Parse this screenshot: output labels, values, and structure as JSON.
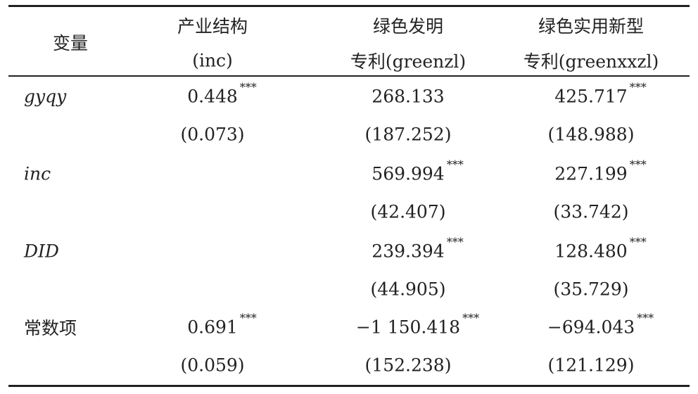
{
  "table": {
    "header": [
      [
        "变量"
      ],
      [
        "产业结构",
        "(inc)"
      ],
      [
        "绿色发明",
        "专利(greenzl)"
      ],
      [
        "绿色实用新型",
        "专利(greenxxzl)"
      ]
    ],
    "rows": [
      {
        "name": "gyqy",
        "italic": true,
        "coef": [
          {
            "value": "0.448",
            "stars": "***"
          },
          {
            "value": "268.133"
          },
          {
            "value": "425.717",
            "stars": "***"
          }
        ],
        "se": [
          "(0.073)",
          "(187.252)",
          "(148.988)"
        ]
      },
      {
        "name": "inc",
        "italic": true,
        "coef": [
          null,
          {
            "value": "569.994",
            "stars": "***"
          },
          {
            "value": "227.199",
            "stars": "***"
          }
        ],
        "se": [
          null,
          "(42.407)",
          "(33.742)"
        ]
      },
      {
        "name": "DID",
        "italic": true,
        "coef": [
          null,
          {
            "value": "239.394",
            "stars": "***"
          },
          {
            "value": "128.480",
            "stars": "***"
          }
        ],
        "se": [
          null,
          "(44.905)",
          "(35.729)"
        ]
      },
      {
        "name": "常数项",
        "italic": false,
        "coef": [
          {
            "value": "0.691",
            "stars": "***"
          },
          {
            "value": "−1 150.418",
            "stars": "***"
          },
          {
            "value": "−694.043",
            "stars": "***"
          }
        ],
        "se": [
          "(0.059)",
          "(152.238)",
          "(121.129)"
        ]
      }
    ]
  }
}
